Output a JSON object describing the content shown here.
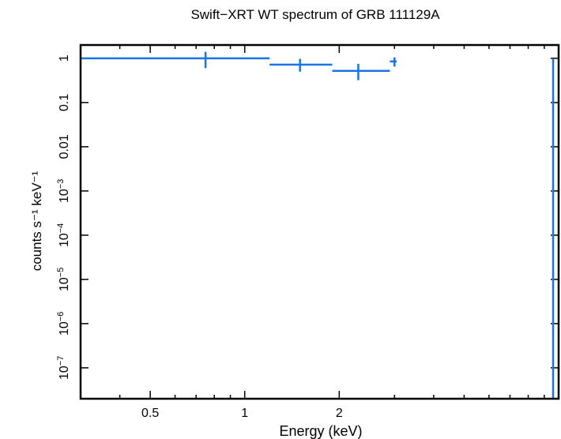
{
  "chart_data": {
    "type": "scatter",
    "title": "Swift−XRT WT spectrum of GRB 111129A",
    "xlabel": "Energy (keV)",
    "ylabel": "counts s⁻¹ keV⁻¹",
    "xscale": "log",
    "yscale": "log",
    "xlim": [
      0.3,
      10
    ],
    "ylim": [
      2e-08,
      2
    ],
    "grid": false,
    "x_ticks": [
      {
        "value": 0.5,
        "label": "0.5"
      },
      {
        "value": 1,
        "label": "1"
      },
      {
        "value": 2,
        "label": "2"
      }
    ],
    "y_ticks": [
      {
        "value": 1,
        "label": "1"
      },
      {
        "value": 0.1,
        "label": "0.1"
      },
      {
        "value": 0.01,
        "label": "0.01"
      },
      {
        "value": 0.001,
        "base": "10",
        "exp": "−3"
      },
      {
        "value": 0.0001,
        "base": "10",
        "exp": "−4"
      },
      {
        "value": 1e-05,
        "base": "10",
        "exp": "−5"
      },
      {
        "value": 1e-06,
        "base": "10",
        "exp": "−6"
      },
      {
        "value": 1e-07,
        "base": "10",
        "exp": "−7"
      }
    ],
    "series": [
      {
        "color": "#1a73e8",
        "points": [
          {
            "x": 0.75,
            "y": 1.0,
            "xlo": 0.3,
            "xhi": 1.2,
            "ylo": 0.6,
            "yhi": 1.4
          },
          {
            "x": 1.5,
            "y": 0.72,
            "xlo": 1.2,
            "xhi": 1.9,
            "ylo": 0.5,
            "yhi": 0.97
          },
          {
            "x": 2.3,
            "y": 0.52,
            "xlo": 1.9,
            "xhi": 2.9,
            "ylo": 0.32,
            "yhi": 0.75
          },
          {
            "x": 3.0,
            "y": 0.85,
            "xlo": 2.9,
            "xhi": 3.05,
            "ylo": 0.65,
            "yhi": 1.05
          }
        ]
      }
    ]
  }
}
